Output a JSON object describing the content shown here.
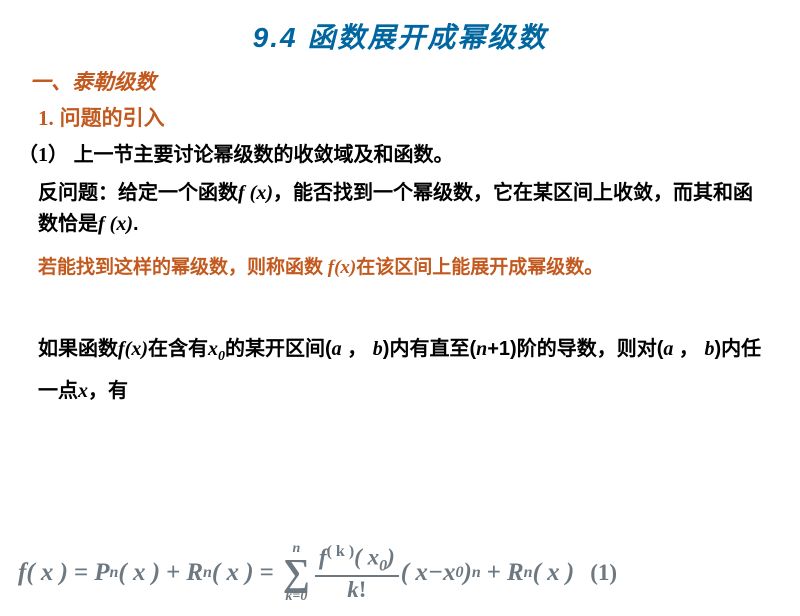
{
  "colors": {
    "title": "#0066a0",
    "accent": "#c25a1f",
    "body": "#000000",
    "formula": "#6d7880",
    "background": "#ffffff"
  },
  "typography": {
    "title_fontsize": 28,
    "heading_fontsize": 21,
    "body_fontsize": 20,
    "highlight_fontsize": 19,
    "formula_fontsize": 25
  },
  "title": "9.4 函数展开成幂级数",
  "section1": "一、泰勒级数",
  "sub1_num": "1.",
  "sub1_text": "问题的引入",
  "item1_num": "（1）",
  "item1_text": "上一节主要讨论幂级数的收敛域及和函数。",
  "inverse_label": "反问题：",
  "inverse_p1": "给定一个函数",
  "inverse_fx1": "f (x)",
  "inverse_p2": "，能否找到一个幂级数，它在某区间上收敛，而其和函数恰是",
  "inverse_fx2": "f (x)",
  "inverse_p3": ".",
  "highlight_p1": "若能找到这样的幂级数，则称函数",
  "highlight_fx": " f(x)",
  "highlight_p2": "在该区间上能展开成幂级数。",
  "theorem": {
    "p1": "如果函数",
    "fx": "f(x)",
    "p2": "在含有",
    "x0": "x",
    "x0_sub": "0",
    "p3": "的某开区间(",
    "a": "a",
    "comma": " ， ",
    "b": "b",
    "p4": ")内有直至(",
    "n": "n",
    "p5": "+1)阶的导数，则对(",
    "p6": ")内任一点",
    "x": "x",
    "p7": "，有"
  },
  "formula": {
    "lhs_f": "f",
    "lhs_x": "( x )",
    "eq": "=",
    "Pn": "P",
    "Rn": "R",
    "sub_n": "n",
    "arg_x": "( x )",
    "plus": "+",
    "sum_top": "n",
    "sum_bot_k": "k",
    "sum_bot_eq": "=",
    "sum_bot_0": "0",
    "frac_top_f": "f",
    "frac_top_sup": "( k )",
    "frac_top_arg": "( x",
    "frac_top_sub": "0",
    "frac_top_close": ")",
    "frac_bot_k": "k",
    "frac_bot_excl": "!",
    "term_open": "( x",
    "term_minus": " − ",
    "term_x0": "x",
    "term_sub0": "0",
    "term_close": " )",
    "term_exp": "n",
    "label": "(1)"
  }
}
